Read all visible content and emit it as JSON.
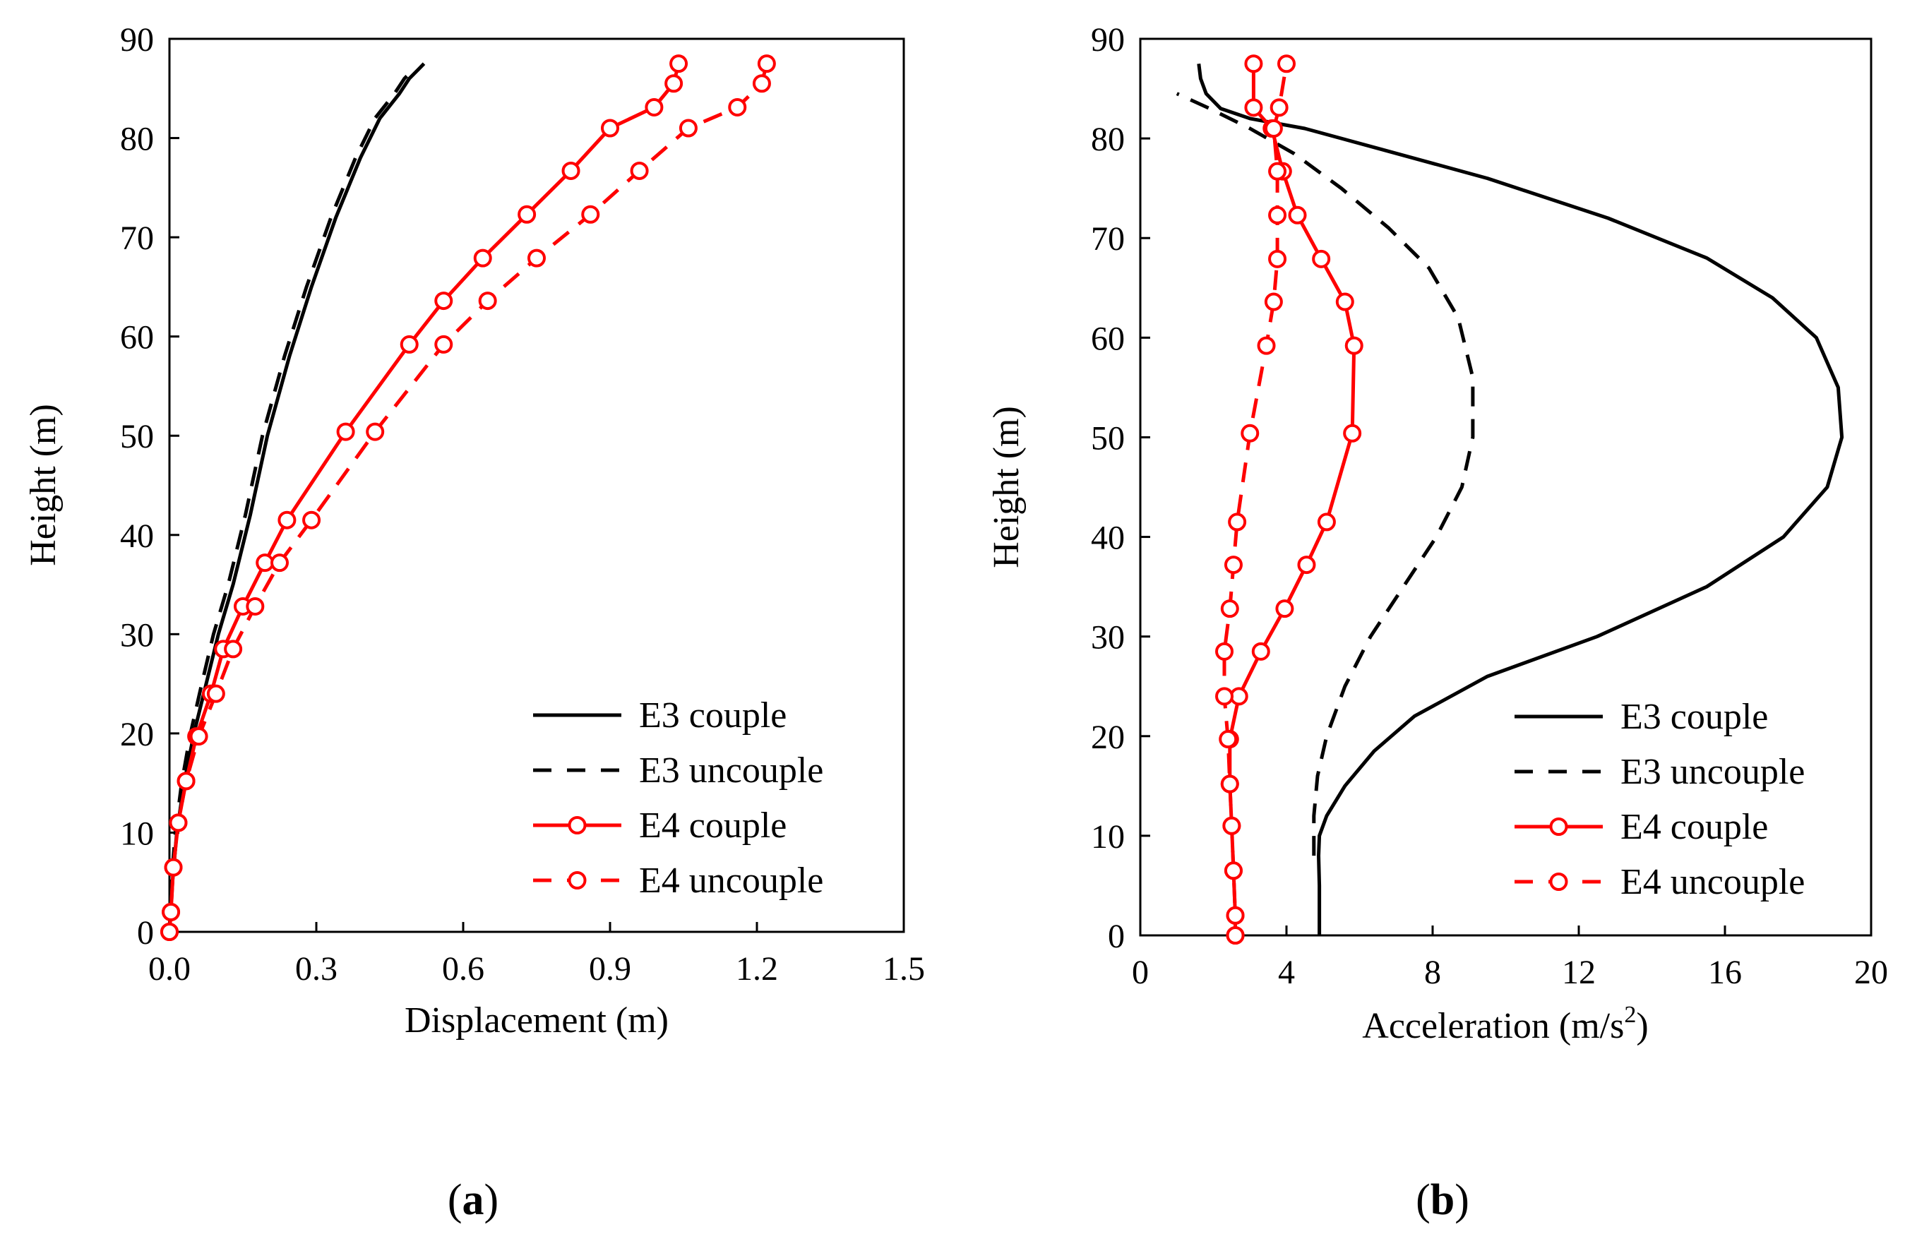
{
  "colors": {
    "black": "#000000",
    "red": "#ff0000",
    "background": "#ffffff"
  },
  "chart_data": [
    {
      "type": "line",
      "panel_label": "a",
      "xlabel": "Displacement (m)",
      "ylabel": "Height (m)",
      "xlim": [
        0,
        1.5
      ],
      "ylim": [
        0,
        90
      ],
      "xticks": [
        "0.0",
        "0.3",
        "0.6",
        "0.9",
        "1.2",
        "1.5"
      ],
      "yticks": [
        "0",
        "10",
        "20",
        "30",
        "40",
        "50",
        "60",
        "70",
        "80",
        "90"
      ],
      "legend_position": "bottom-right",
      "series": [
        {
          "name": "E3 couple",
          "color": "#000000",
          "dash": "solid",
          "marker": "none",
          "x": [
            0.0,
            0.006,
            0.015,
            0.03,
            0.05,
            0.075,
            0.1,
            0.13,
            0.165,
            0.2,
            0.245,
            0.29,
            0.34,
            0.39,
            0.43,
            0.47,
            0.49,
            0.51,
            0.52
          ],
          "y": [
            0,
            5,
            10,
            15,
            20,
            25,
            30,
            35,
            42,
            50,
            58,
            65,
            72,
            78,
            82,
            84.5,
            86,
            87,
            87.5
          ]
        },
        {
          "name": "E3 uncouple",
          "color": "#000000",
          "dash": "dashed",
          "marker": "none",
          "x": [
            0.0,
            0.004,
            0.012,
            0.025,
            0.043,
            0.066,
            0.09,
            0.12,
            0.155,
            0.19,
            0.235,
            0.28,
            0.33,
            0.38,
            0.42,
            0.46,
            0.48,
            0.5
          ],
          "y": [
            0,
            5,
            10,
            15,
            20,
            25,
            30,
            35,
            42,
            50,
            58,
            65,
            72,
            78,
            82,
            84.5,
            86,
            87
          ]
        },
        {
          "name": "E4 couple",
          "color": "#ff0000",
          "dash": "solid",
          "marker": "circle",
          "x": [
            0.0,
            0.003,
            0.008,
            0.018,
            0.034,
            0.055,
            0.085,
            0.11,
            0.15,
            0.195,
            0.24,
            0.36,
            0.49,
            0.56,
            0.64,
            0.73,
            0.82,
            0.9,
            0.99,
            1.03,
            1.04
          ],
          "y": [
            0,
            2,
            6.5,
            11,
            15.2,
            19.7,
            24,
            28.5,
            32.8,
            37.2,
            41.5,
            50.4,
            59.2,
            63.6,
            67.9,
            72.3,
            76.7,
            81,
            83.1,
            85.5,
            87.5
          ]
        },
        {
          "name": "E4 uncouple",
          "color": "#ff0000",
          "dash": "dashed",
          "marker": "circle",
          "x": [
            0.0,
            0.003,
            0.008,
            0.018,
            0.034,
            0.06,
            0.095,
            0.13,
            0.175,
            0.225,
            0.29,
            0.42,
            0.56,
            0.65,
            0.75,
            0.86,
            0.96,
            1.06,
            1.16,
            1.21,
            1.22
          ],
          "y": [
            0,
            2,
            6.5,
            11,
            15.2,
            19.7,
            24,
            28.5,
            32.8,
            37.2,
            41.5,
            50.4,
            59.2,
            63.6,
            67.9,
            72.3,
            76.7,
            81,
            83.1,
            85.5,
            87.5
          ]
        }
      ]
    },
    {
      "type": "line",
      "panel_label": "b",
      "xlabel": "Acceleration (m/s",
      "xlabel_sup": "2",
      "xlabel_end": ")",
      "ylabel": "Height (m)",
      "xlim": [
        0,
        20
      ],
      "ylim": [
        0,
        90
      ],
      "xticks": [
        "0",
        "4",
        "8",
        "12",
        "16",
        "20"
      ],
      "yticks": [
        "0",
        "10",
        "20",
        "30",
        "40",
        "50",
        "60",
        "70",
        "80",
        "90"
      ],
      "legend_position": "bottom-right",
      "series": [
        {
          "name": "E3 couple",
          "color": "#000000",
          "dash": "solid",
          "marker": "none",
          "x": [
            4.9,
            4.9,
            4.88,
            4.9,
            5.1,
            5.6,
            6.4,
            7.5,
            9.5,
            12.5,
            15.5,
            17.6,
            18.8,
            19.2,
            19.1,
            18.5,
            17.3,
            15.5,
            12.8,
            9.5,
            6.5,
            4.5,
            3.0,
            2.2,
            1.8,
            1.65,
            1.6
          ],
          "y": [
            0,
            5,
            8,
            10,
            12,
            15,
            18.5,
            22,
            26,
            30,
            35,
            40,
            45,
            50,
            55,
            60,
            64,
            68,
            72,
            76,
            79,
            81,
            82,
            83,
            84.5,
            86,
            87.5
          ]
        },
        {
          "name": "E3 uncouple",
          "color": "#000000",
          "dash": "dashed",
          "marker": "none",
          "x": [
            4.75,
            4.75,
            4.85,
            5.1,
            5.6,
            6.3,
            7.2,
            8.1,
            8.8,
            9.1,
            9.1,
            8.7,
            7.9,
            6.8,
            5.5,
            4.2,
            3.0,
            1.9,
            1.0
          ],
          "y": [
            8,
            12,
            16,
            20,
            25,
            30,
            35,
            40,
            45,
            50,
            56,
            62,
            67,
            71,
            75,
            78.5,
            81,
            83,
            84.5
          ]
        },
        {
          "name": "E4 couple",
          "color": "#ff0000",
          "dash": "solid",
          "marker": "circle",
          "x": [
            2.6,
            2.6,
            2.55,
            2.5,
            2.45,
            2.45,
            2.7,
            3.3,
            3.95,
            4.55,
            5.1,
            5.8,
            5.85,
            5.6,
            4.95,
            4.3,
            3.9,
            3.6,
            3.1,
            3.1
          ],
          "y": [
            0,
            2,
            6.5,
            11,
            15.2,
            19.7,
            24,
            28.5,
            32.8,
            37.2,
            41.5,
            50.4,
            59.2,
            63.6,
            67.9,
            72.3,
            76.7,
            81,
            83.1,
            87.5
          ]
        },
        {
          "name": "E4 uncouple",
          "color": "#ff0000",
          "dash": "dashed",
          "marker": "circle",
          "x": [
            2.6,
            2.6,
            2.55,
            2.5,
            2.45,
            2.4,
            2.3,
            2.3,
            2.45,
            2.55,
            2.65,
            3.0,
            3.45,
            3.65,
            3.75,
            3.75,
            3.75,
            3.65,
            3.8,
            4.0
          ],
          "y": [
            0,
            2,
            6.5,
            11,
            15.2,
            19.7,
            24,
            28.5,
            32.8,
            37.2,
            41.5,
            50.4,
            59.2,
            63.6,
            67.9,
            72.3,
            76.7,
            81,
            83.1,
            87.5
          ]
        }
      ]
    }
  ]
}
